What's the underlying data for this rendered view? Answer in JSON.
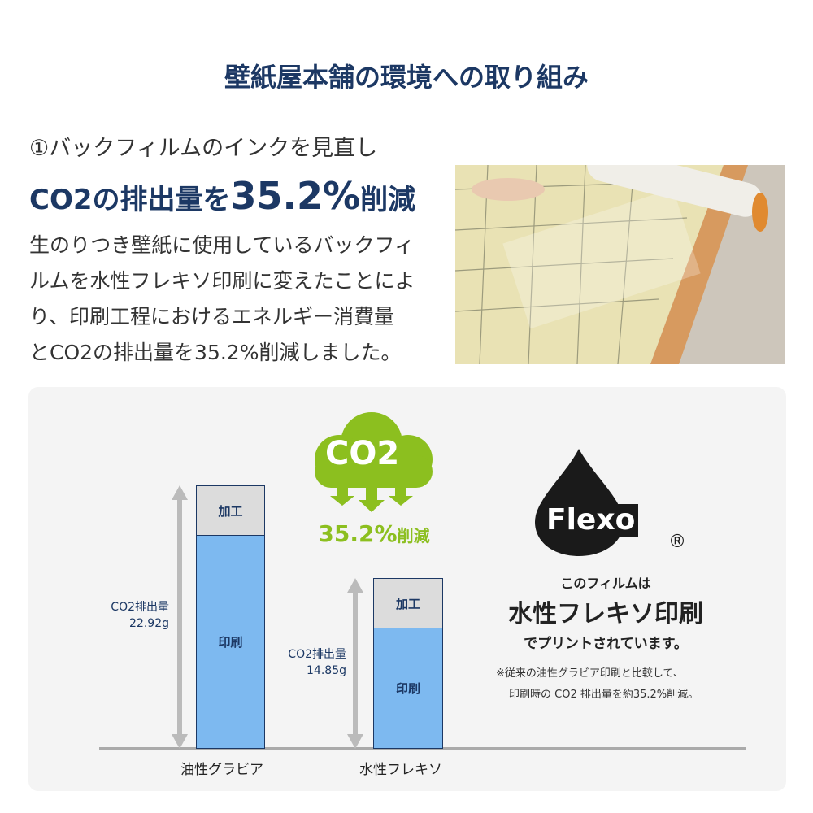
{
  "title": "壁紙屋本舗の環境への取り組み",
  "section": {
    "subtitle": "①バックフィルムのインクを見直し",
    "headline_prefix": "CO2の排出量を",
    "headline_value": "35.2%",
    "headline_suffix": "削減",
    "body": [
      "生のりつき壁紙に使用しているバックフィ",
      "ルムを水性フレキソ印刷に変えたことによ",
      "り、印刷工程におけるエネルギー消費量",
      "とCO2の排出量を35.2%削減しました。"
    ]
  },
  "infographic": {
    "cloud_label": "CO2",
    "reduction_value": "35.2%",
    "reduction_suffix": "削減",
    "flexo_logo": "Flexo",
    "registered_mark": "®",
    "film_line1": "このフィルムは",
    "film_line2": "水性フレキソ印刷",
    "film_line3": "でプリントされています。",
    "note_line1": "※従来の油性グラビア印刷と比較して、",
    "note_line2": "印刷時の CO2 排出量を約35.2%削減。"
  },
  "colors": {
    "navy": "#1c3864",
    "green": "#8cbf1f",
    "print_blue": "#7db9f0",
    "process_gray": "#dcdcdc"
  },
  "chart_data": {
    "type": "bar",
    "stacked": true,
    "categories": [
      "油性グラビア",
      "水性フレキソ"
    ],
    "segment_labels": [
      "印刷",
      "加工"
    ],
    "total_label": "CO2排出量",
    "totals": [
      22.92,
      14.85
    ],
    "total_labels": [
      "22.92g",
      "14.85g"
    ],
    "unit": "g"
  }
}
